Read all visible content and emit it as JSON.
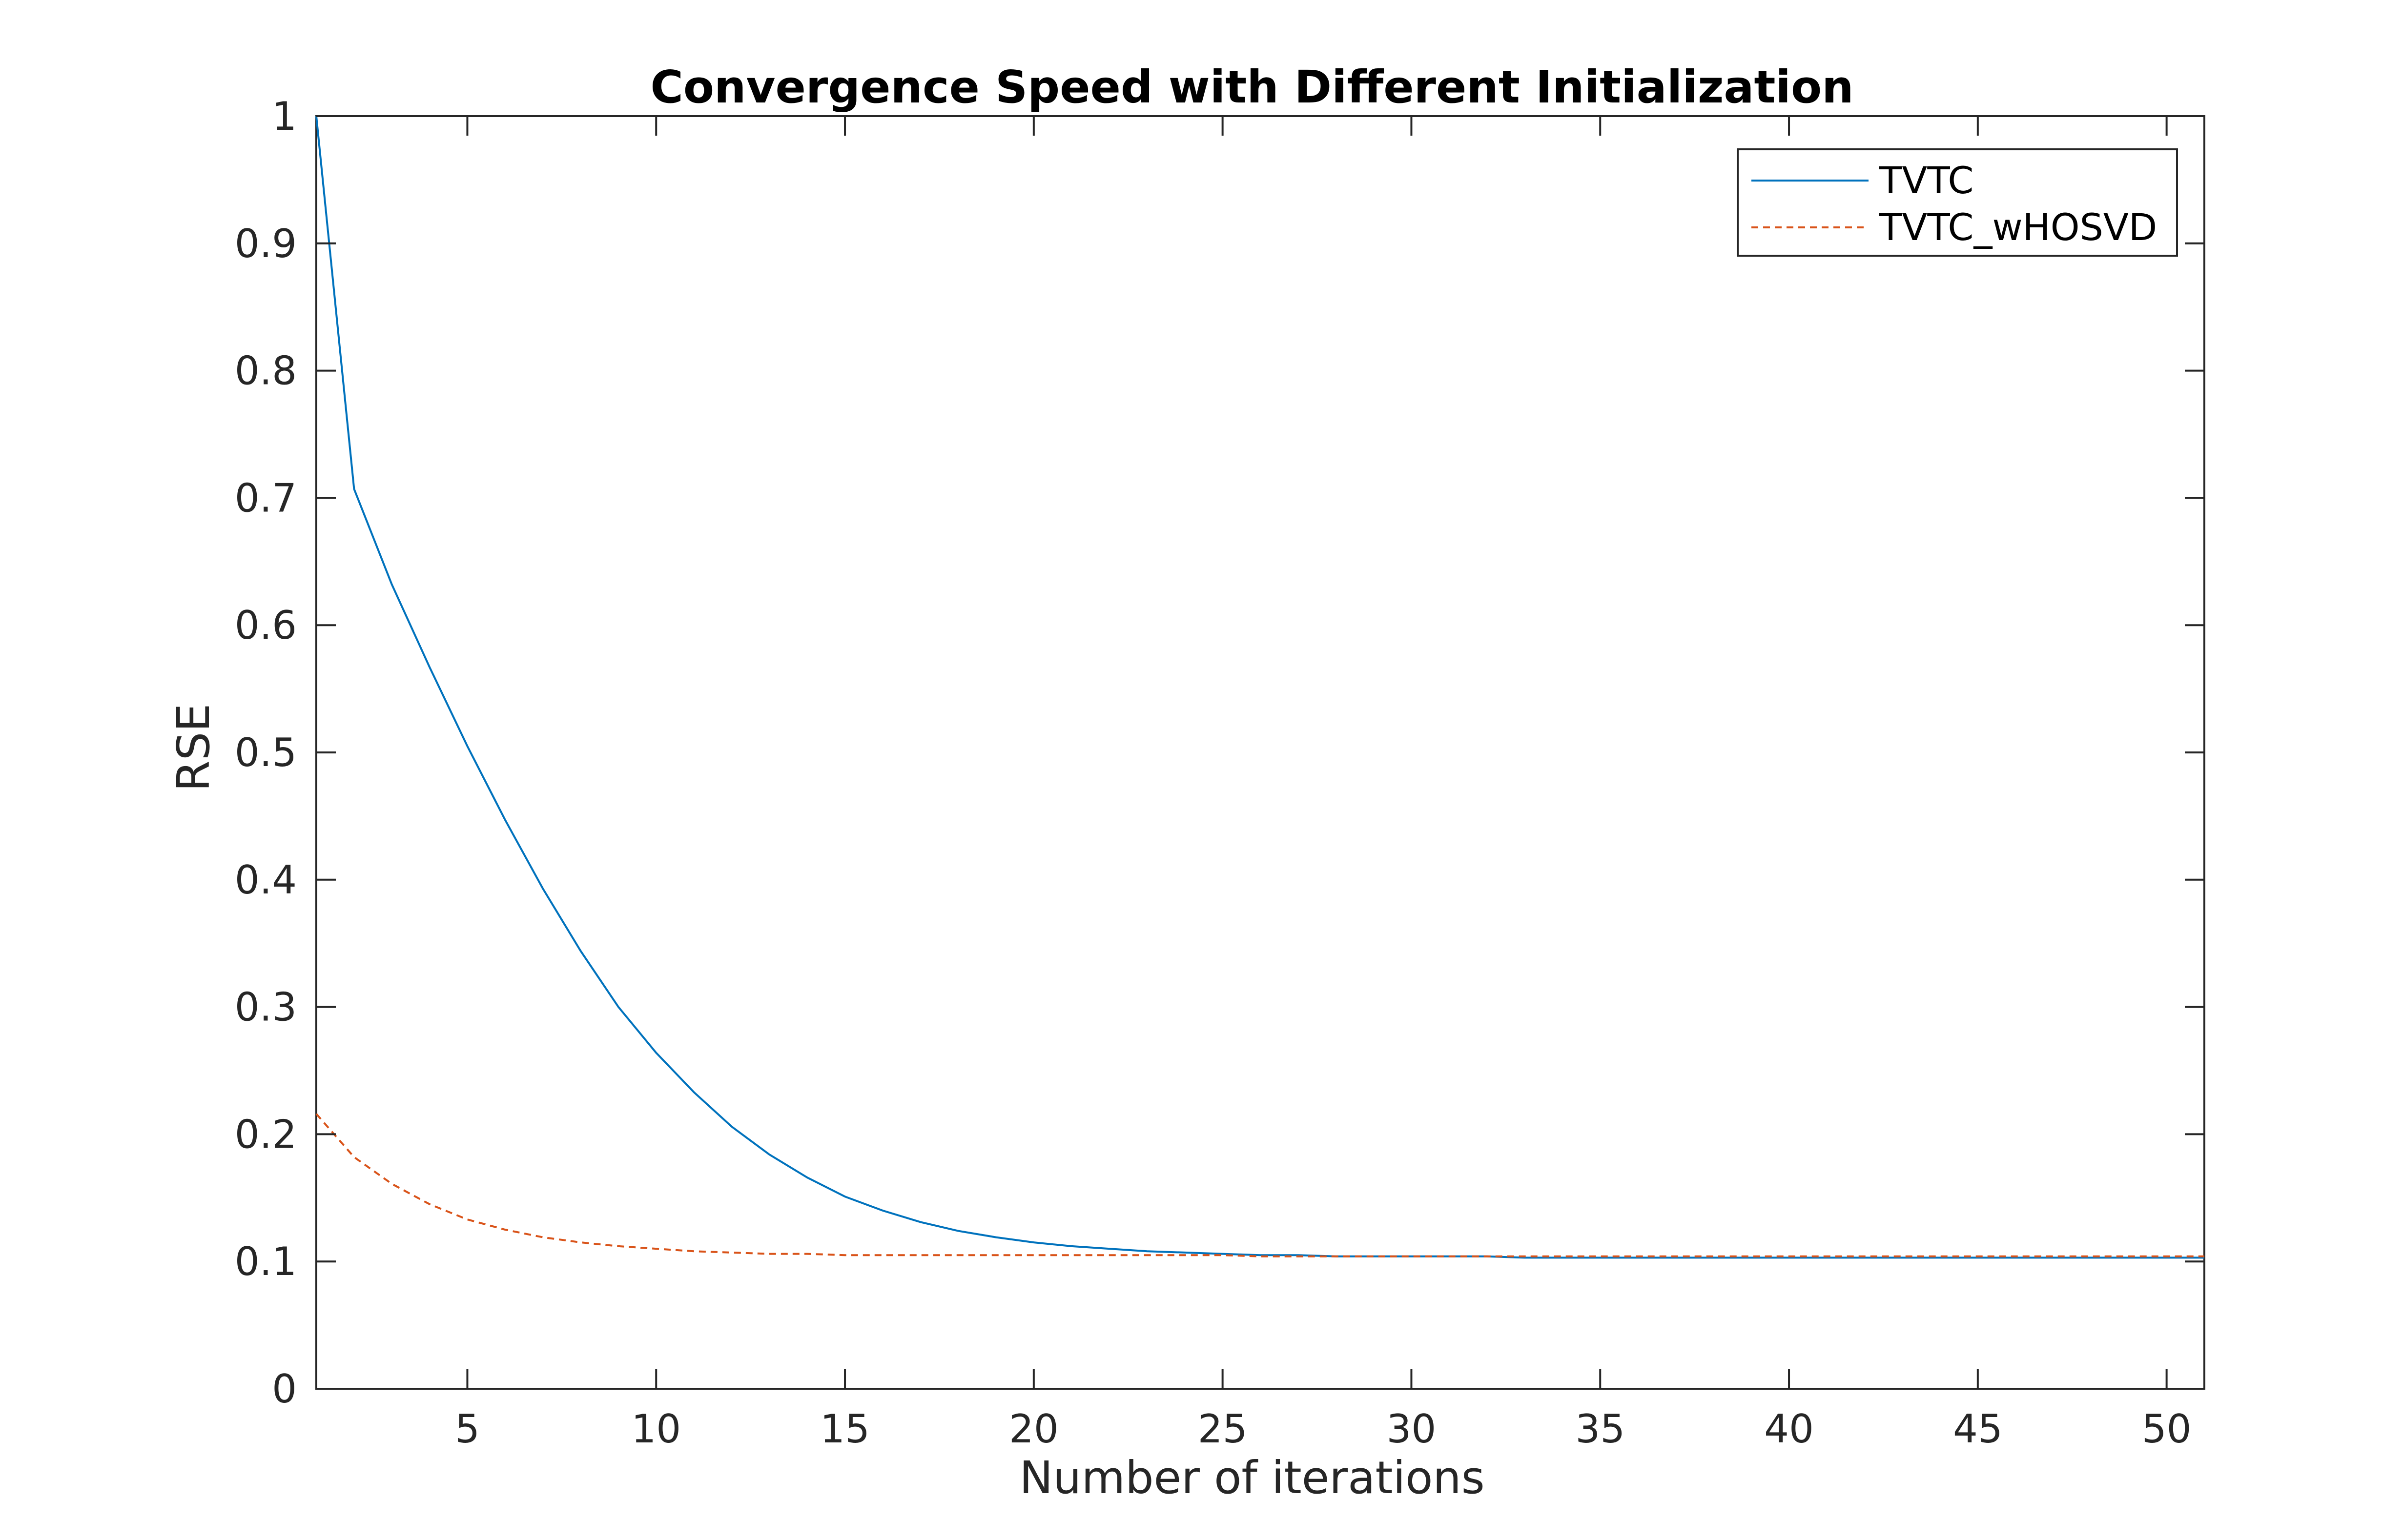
{
  "chart_data": {
    "type": "line",
    "title": "Convergence Speed with Different Initialization",
    "xlabel": "Number of iterations",
    "ylabel": "RSE",
    "xlim": [
      1,
      51
    ],
    "ylim": [
      0,
      1
    ],
    "xticks": [
      5,
      10,
      15,
      20,
      25,
      30,
      35,
      40,
      45,
      50
    ],
    "yticks": [
      0,
      0.1,
      0.2,
      0.3,
      0.4,
      0.5,
      0.6,
      0.7,
      0.8,
      0.9,
      1
    ],
    "yticklabels": [
      "0",
      "0.1",
      "0.2",
      "0.3",
      "0.4",
      "0.5",
      "0.6",
      "0.7",
      "0.8",
      "0.9",
      "1"
    ],
    "grid": false,
    "legend_position": "top-right",
    "x": [
      1,
      2,
      3,
      4,
      5,
      6,
      7,
      8,
      9,
      10,
      11,
      12,
      13,
      14,
      15,
      16,
      17,
      18,
      19,
      20,
      21,
      22,
      23,
      24,
      25,
      26,
      27,
      28,
      29,
      30,
      31,
      32,
      33,
      34,
      35,
      36,
      37,
      38,
      39,
      40,
      41,
      42,
      43,
      44,
      45,
      46,
      47,
      48,
      49,
      50,
      51
    ],
    "series": [
      {
        "name": "TVTC",
        "color": "#0072BD",
        "style": "solid",
        "values": [
          1.0,
          0.707,
          0.632,
          0.567,
          0.505,
          0.447,
          0.393,
          0.344,
          0.3,
          0.264,
          0.233,
          0.206,
          0.184,
          0.166,
          0.151,
          0.14,
          0.131,
          0.124,
          0.119,
          0.115,
          0.112,
          0.11,
          0.108,
          0.107,
          0.106,
          0.105,
          0.105,
          0.104,
          0.104,
          0.104,
          0.104,
          0.104,
          0.103,
          0.103,
          0.103,
          0.103,
          0.103,
          0.103,
          0.103,
          0.103,
          0.103,
          0.103,
          0.103,
          0.103,
          0.103,
          0.103,
          0.103,
          0.103,
          0.103,
          0.103,
          0.103
        ]
      },
      {
        "name": "TVTC_wHOSVD",
        "color": "#D95319",
        "style": "dashed",
        "values": [
          0.216,
          0.182,
          0.161,
          0.145,
          0.133,
          0.125,
          0.119,
          0.115,
          0.112,
          0.11,
          0.108,
          0.107,
          0.106,
          0.106,
          0.105,
          0.105,
          0.105,
          0.105,
          0.105,
          0.105,
          0.105,
          0.105,
          0.105,
          0.105,
          0.105,
          0.104,
          0.104,
          0.104,
          0.104,
          0.104,
          0.104,
          0.104,
          0.104,
          0.104,
          0.104,
          0.104,
          0.104,
          0.104,
          0.104,
          0.104,
          0.104,
          0.104,
          0.104,
          0.104,
          0.104,
          0.104,
          0.104,
          0.104,
          0.104,
          0.104,
          0.104
        ]
      }
    ]
  }
}
